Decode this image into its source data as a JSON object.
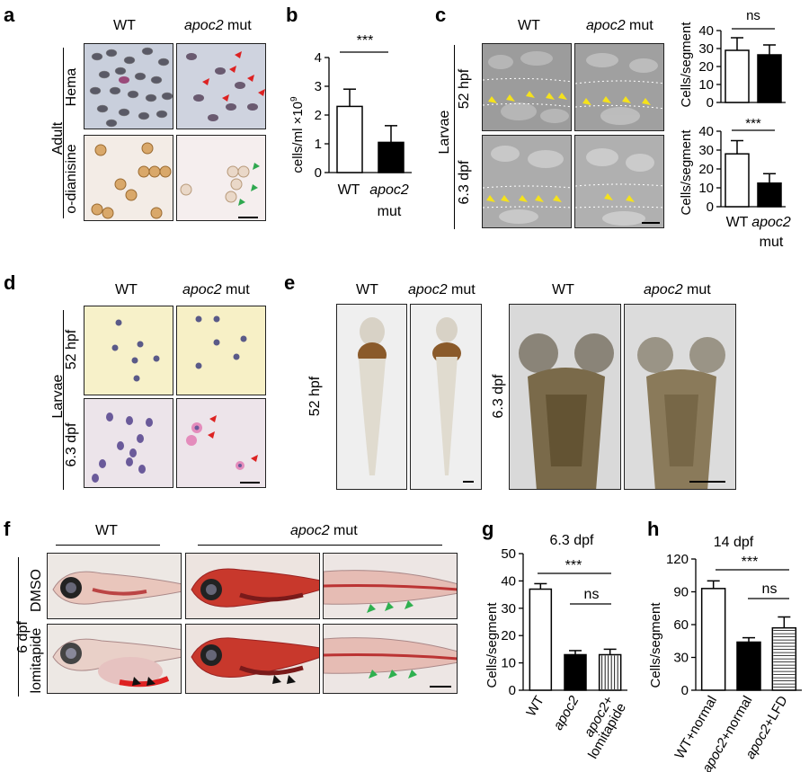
{
  "panels": {
    "a": {
      "letter": "a",
      "col_wt": "WT",
      "col_mut_gene": "apoc2",
      "col_mut_suffix": " mut",
      "row_group": "Adult",
      "row1": "Hema",
      "row2": "o-dianisine"
    },
    "b": {
      "letter": "b",
      "sig": "***",
      "ylabel": "cells/ml ×10",
      "ylabel_sup": "9",
      "x_wt": "WT",
      "x_mut_gene": "apoc2",
      "x_mut_suffix": "mut"
    },
    "c": {
      "letter": "c",
      "col_wt": "WT",
      "col_mut_gene": "apoc2",
      "col_mut_suffix": " mut",
      "row_group": "Larvae",
      "row1": "52 hpf",
      "row2": "6.3 dpf",
      "sig_top": "ns",
      "sig_bottom": "***",
      "ylabel": "Cells/segment",
      "x_wt": "WT",
      "x_mut_gene": "apoc2",
      "x_mut_suffix": "mut"
    },
    "d": {
      "letter": "d",
      "col_wt": "WT",
      "col_mut_gene": "apoc2",
      "col_mut_suffix": " mut",
      "row_group": "Larvae",
      "row1": "52 hpf",
      "row2": "6.3 dpf"
    },
    "e": {
      "letter": "e",
      "col_wt": "WT",
      "col_mut_gene": "apoc2",
      "col_mut_suffix": " mut",
      "row1": "52 hpf",
      "row2": "6.3 dpf"
    },
    "f": {
      "letter": "f",
      "col_wt": "WT",
      "col_mut_gene": "apoc2",
      "col_mut_suffix": " mut",
      "row_group": "6 dpf",
      "row1": "DMSO",
      "row2": "lomitapide"
    },
    "g": {
      "letter": "g",
      "title": "6.3 dpf",
      "sig_top": "***",
      "sig_ns": "ns",
      "ylabel": "Cells/segment"
    },
    "h": {
      "letter": "h",
      "title": "14 dpf",
      "sig_top": "***",
      "sig_ns": "ns",
      "ylabel": "Cells/segment"
    }
  },
  "chart_data": [
    {
      "id": "b",
      "type": "bar",
      "categories": [
        "WT",
        "apoc2 mut"
      ],
      "values": [
        2.3,
        1.05
      ],
      "errors": [
        0.6,
        0.58
      ],
      "ylim": [
        0,
        4
      ],
      "yticks": [
        0,
        1,
        2,
        3,
        4
      ],
      "ylabel": "cells/ml ×10^9",
      "annotation": "***"
    },
    {
      "id": "c-top",
      "type": "bar",
      "categories": [
        "WT",
        "apoc2 mut"
      ],
      "values": [
        29,
        26.5
      ],
      "errors": [
        7,
        5.5
      ],
      "ylim": [
        0,
        40
      ],
      "yticks": [
        0,
        10,
        20,
        30,
        40
      ],
      "ylabel": "Cells/segment",
      "annotation": "ns"
    },
    {
      "id": "c-bottom",
      "type": "bar",
      "categories": [
        "WT",
        "apoc2 mut"
      ],
      "values": [
        28,
        12.5
      ],
      "errors": [
        7,
        5
      ],
      "ylim": [
        0,
        40
      ],
      "yticks": [
        0,
        10,
        20,
        30,
        40
      ],
      "ylabel": "Cells/segment",
      "annotation": "***"
    },
    {
      "id": "g",
      "type": "bar",
      "title": "6.3 dpf",
      "categories": [
        "WT",
        "apoc2",
        "apoc2+ lomitapide"
      ],
      "values": [
        37,
        13,
        13
      ],
      "errors": [
        2,
        1.5,
        2
      ],
      "ylim": [
        0,
        50
      ],
      "yticks": [
        0,
        10,
        20,
        30,
        40,
        50
      ],
      "ylabel": "Cells/segment",
      "annotations": [
        "***",
        "ns"
      ]
    },
    {
      "id": "h",
      "type": "bar",
      "title": "14 dpf",
      "categories": [
        "WT+normal",
        "apoc2+normal",
        "apoc2+LFD"
      ],
      "values": [
        93,
        44,
        57
      ],
      "errors": [
        7,
        4,
        10
      ],
      "ylim": [
        0,
        120
      ],
      "yticks": [
        0,
        30,
        60,
        90,
        120
      ],
      "ylabel": "Cells/segment",
      "annotations": [
        "***",
        "ns"
      ]
    }
  ]
}
